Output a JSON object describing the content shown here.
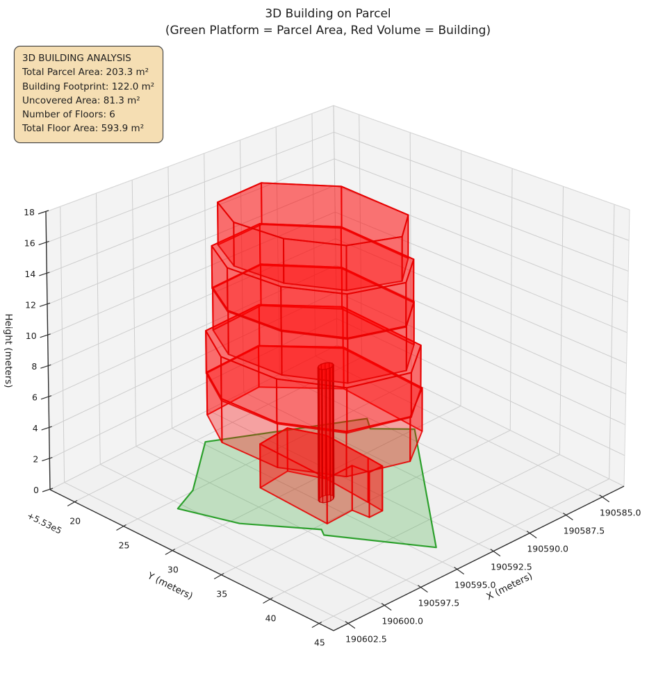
{
  "title": {
    "line1": "3D Building on Parcel",
    "line2": "(Green Platform = Parcel Area, Red Volume = Building)"
  },
  "info_box": {
    "title": "3D BUILDING ANALYSIS",
    "lines": [
      "Total Parcel Area: 203.3 m²",
      "Building Footprint: 122.0 m²",
      "Uncovered Area: 81.3 m²",
      "Number of Floors: 6",
      "Total Floor Area: 593.9 m²"
    ],
    "bg_color": "#f5deb3",
    "border_color": "#3a3a3a"
  },
  "chart_data": {
    "type": "3d-building-plot",
    "legend_note": "Green Platform = Parcel Area, Red Volume = Building",
    "stats": {
      "total_parcel_area_m2": 203.3,
      "building_footprint_m2": 122.0,
      "uncovered_area_m2": 81.3,
      "number_of_floors": 6,
      "total_floor_area_m2": 593.9
    },
    "axes": {
      "x": {
        "label": "X (meters)",
        "range": [
          190583.5,
          190603.5
        ],
        "ticks": [
          190585.0,
          190587.5,
          190590.0,
          190592.5,
          190595.0,
          190597.5,
          190600.0,
          190602.5
        ],
        "tick_labels": [
          "190585.0",
          "190587.5",
          "190590.0",
          "190592.5",
          "190595.0",
          "190597.5",
          "190600.0",
          "190602.5"
        ]
      },
      "y": {
        "label": "Y (meters)",
        "offset_text": "+5.53e5",
        "range": [
          553017.5,
          553046.5
        ],
        "ticks": [
          553020,
          553025,
          553030,
          553035,
          553040,
          553045
        ],
        "tick_labels": [
          "20",
          "25",
          "30",
          "35",
          "40",
          "45"
        ]
      },
      "z": {
        "label": "Height (meters)",
        "range": [
          0,
          18
        ],
        "ticks": [
          0,
          2,
          4,
          6,
          8,
          10,
          12,
          14,
          16,
          18
        ],
        "tick_labels": [
          "0",
          "2",
          "4",
          "6",
          "8",
          "10",
          "12",
          "14",
          "16",
          "18"
        ]
      },
      "grid_color": "#cdcdcd",
      "pane_color": "#f3f3f3",
      "floor_pane_color": "#f1f1f1",
      "spine_color": "#2b2b2b",
      "text_color": "#1a1a1a"
    },
    "parcel": {
      "fill": "#3fae3f",
      "fill_opacity": 0.28,
      "edge": "#2ca02c",
      "polygon": [
        [
          190594.8,
          553020.6
        ],
        [
          190587.6,
          553026.5
        ],
        [
          190588.2,
          553027.7
        ],
        [
          190586.7,
          553030.0
        ],
        [
          190594.2,
          553043.2
        ],
        [
          190597.2,
          553036.2
        ],
        [
          190596.9,
          553035.5
        ],
        [
          190599.3,
          553030.7
        ],
        [
          190600.4,
          553026.0
        ],
        [
          190598.6,
          553024.9
        ]
      ]
    },
    "building": {
      "face": "#ff0000",
      "face_opacity": 0.33,
      "edge": "#e60000",
      "floor_height": 2.85,
      "floors": [
        {
          "z0": 0.0,
          "z1": 2.85,
          "footprint": [
            [
              190594.0,
              553027.8
            ],
            [
              190596.1,
              553028.1
            ],
            [
              190596.3,
              553035.2
            ],
            [
              190594.5,
              553035.1
            ],
            [
              190594.4,
              553036.7
            ],
            [
              190593.5,
              553036.7
            ],
            [
              190593.4,
              553035.1
            ],
            [
              190593.2,
              553030.6
            ]
          ]
        },
        {
          "z0": 2.85,
          "z1": 5.7,
          "footprint": [
            [
              190592.0,
              553022.0
            ],
            [
              190595.8,
              553022.3
            ],
            [
              190597.3,
              553026.0
            ],
            [
              190597.2,
              553031.5
            ],
            [
              190595.5,
              553036.0
            ],
            [
              190592.2,
              553037.6
            ],
            [
              190589.6,
              553035.0
            ],
            [
              190589.2,
              553026.5
            ]
          ]
        },
        {
          "z0": 5.7,
          "z1": 8.55,
          "footprint": [
            [
              190592.0,
              553022.1
            ],
            [
              190595.9,
              553022.4
            ],
            [
              190597.45,
              553026.2
            ],
            [
              190597.3,
              553031.6
            ],
            [
              190595.6,
              553036.2
            ],
            [
              190592.2,
              553037.7
            ],
            [
              190589.7,
              553035.0
            ],
            [
              190589.3,
              553026.6
            ]
          ]
        },
        {
          "z0": 8.55,
          "z1": 11.4,
          "footprint": [
            [
              190592.0,
              553022.3
            ],
            [
              190595.6,
              553022.7
            ],
            [
              190597.0,
              553026.3
            ],
            [
              190596.8,
              553031.4
            ],
            [
              190595.2,
              553035.7
            ],
            [
              190592.2,
              553037.2
            ],
            [
              190589.9,
              553034.6
            ],
            [
              190589.5,
              553026.8
            ]
          ]
        },
        {
          "z0": 11.4,
          "z1": 14.25,
          "footprint": [
            [
              190592.1,
              553022.4
            ],
            [
              190595.7,
              553022.8
            ],
            [
              190597.1,
              553026.4
            ],
            [
              190596.9,
              553031.5
            ],
            [
              190595.3,
              553035.8
            ],
            [
              190592.3,
              553037.3
            ],
            [
              190590.0,
              553034.7
            ],
            [
              190589.6,
              553026.9
            ]
          ]
        },
        {
          "z0": 14.25,
          "z1": 17.1,
          "footprint": [
            [
              190592.1,
              553022.6
            ],
            [
              190595.4,
              553023.0
            ],
            [
              190596.7,
              553026.5
            ],
            [
              190596.5,
              553031.2
            ],
            [
              190595.0,
              553035.3
            ],
            [
              190592.3,
              553036.9
            ],
            [
              190590.1,
              553034.3
            ],
            [
              190589.7,
              553027.1
            ]
          ]
        }
      ],
      "shaft": {
        "center": [
          190594.6,
          553032.6
        ],
        "radius": 0.45,
        "z0": 0,
        "z1": 8.55,
        "sides": 12
      }
    }
  }
}
